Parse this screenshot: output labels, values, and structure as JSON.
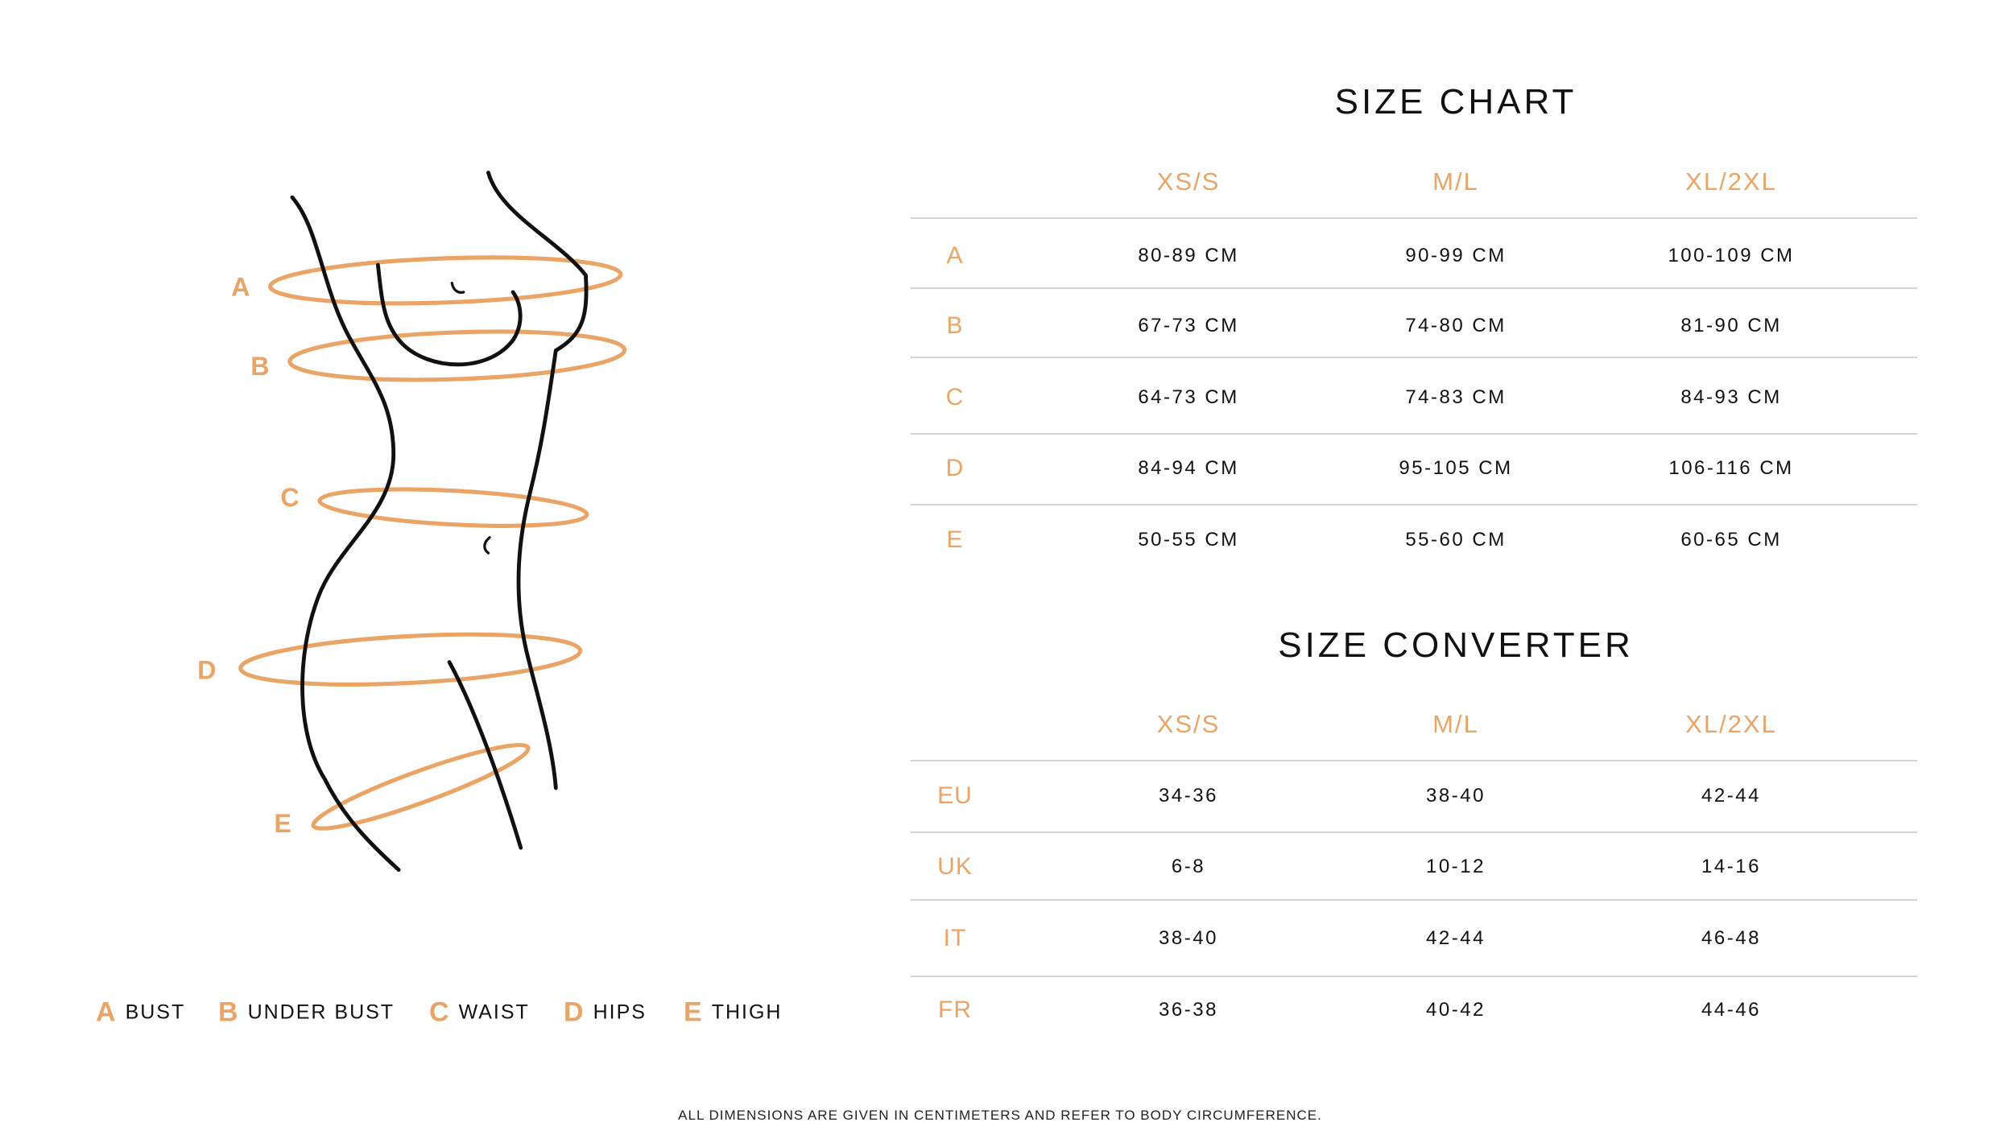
{
  "colors": {
    "accent": "#e9a466",
    "text": "#111111",
    "divider": "#d4d4d4"
  },
  "figure": {
    "labels": [
      "A",
      "B",
      "C",
      "D",
      "E"
    ]
  },
  "legend": [
    {
      "letter": "A",
      "label": "BUST"
    },
    {
      "letter": "B",
      "label": "UNDER BUST"
    },
    {
      "letter": "C",
      "label": "WAIST"
    },
    {
      "letter": "D",
      "label": "HIPS"
    },
    {
      "letter": "E",
      "label": "THIGH"
    }
  ],
  "size_chart": {
    "title": "SIZE CHART",
    "columns": [
      "XS/S",
      "M/L",
      "XL/2XL"
    ],
    "rows": [
      {
        "label": "A",
        "values": [
          "80-89 CM",
          "90-99 CM",
          "100-109 CM"
        ]
      },
      {
        "label": "B",
        "values": [
          "67-73 CM",
          "74-80 CM",
          "81-90 CM"
        ]
      },
      {
        "label": "C",
        "values": [
          "64-73 CM",
          "74-83 CM",
          "84-93 CM"
        ]
      },
      {
        "label": "D",
        "values": [
          "84-94 CM",
          "95-105 CM",
          "106-116 CM"
        ]
      },
      {
        "label": "E",
        "values": [
          "50-55 CM",
          "55-60 CM",
          "60-65 CM"
        ]
      }
    ]
  },
  "size_converter": {
    "title": "SIZE CONVERTER",
    "columns": [
      "XS/S",
      "M/L",
      "XL/2XL"
    ],
    "rows": [
      {
        "label": "EU",
        "values": [
          "34-36",
          "38-40",
          "42-44"
        ]
      },
      {
        "label": "UK",
        "values": [
          "6-8",
          "10-12",
          "14-16"
        ]
      },
      {
        "label": "IT",
        "values": [
          "38-40",
          "42-44",
          "46-48"
        ]
      },
      {
        "label": "FR",
        "values": [
          "36-38",
          "40-42",
          "44-46"
        ]
      }
    ]
  },
  "footer": {
    "note": "ALL DIMENSIONS ARE GIVEN IN CENTIMETERS AND REFER TO BODY CIRCUMFERENCE."
  }
}
